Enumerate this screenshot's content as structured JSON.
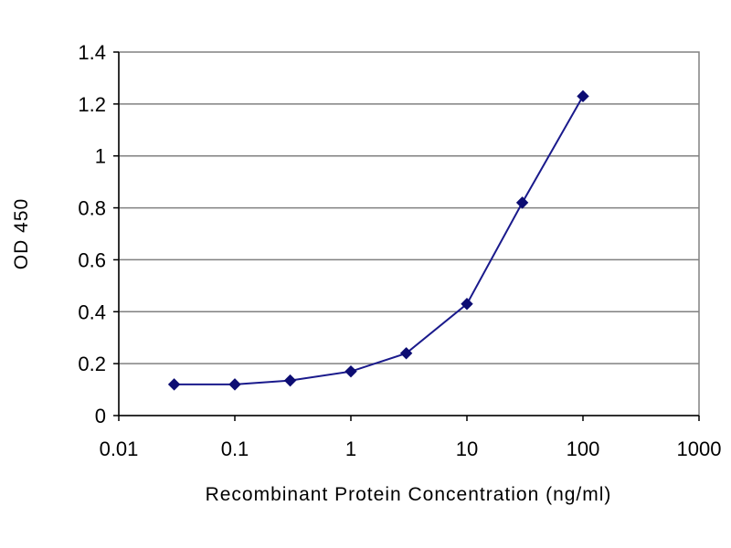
{
  "chart_data": {
    "type": "line",
    "title": "",
    "xlabel": "Recombinant Protein Concentration (ng/ml)",
    "ylabel": "OD 450",
    "x_scale": "log",
    "xlim": [
      0.01,
      1000
    ],
    "ylim": [
      0,
      1.4
    ],
    "x_ticks": [
      0.01,
      0.1,
      1,
      10,
      100,
      1000
    ],
    "x_tick_labels": [
      "0.01",
      "0.1",
      "1",
      "10",
      "100",
      "1000"
    ],
    "y_ticks": [
      0,
      0.2,
      0.4,
      0.6,
      0.8,
      1,
      1.2,
      1.4
    ],
    "y_tick_labels": [
      "0",
      "0.2",
      "0.4",
      "0.6",
      "0.8",
      "1",
      "1.2",
      "1.4"
    ],
    "grid": "horizontal",
    "legend": "none",
    "series": [
      {
        "x": [
          0.03,
          0.1,
          0.3,
          1,
          3,
          10,
          30,
          100
        ],
        "y": [
          0.12,
          0.12,
          0.135,
          0.17,
          0.24,
          0.43,
          0.82,
          1.23
        ],
        "color": "#1a1a8c",
        "marker": "diamond"
      }
    ]
  }
}
